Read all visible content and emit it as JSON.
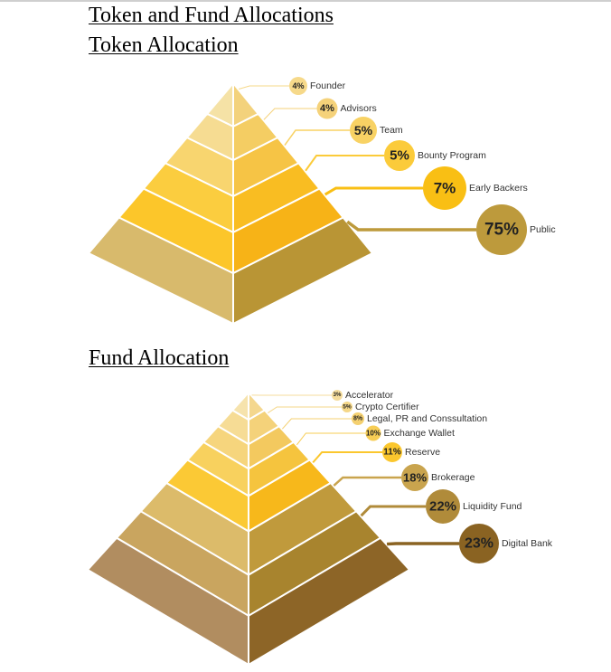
{
  "page": {
    "title": "Token and Fund Allocations"
  },
  "chart_data": [
    {
      "type": "pyramid",
      "title": "Token Allocation",
      "categories": [
        "Founder",
        "Advisors",
        "Team",
        "Bounty Program",
        "Early Backers",
        "Public"
      ],
      "values": [
        4,
        4,
        5,
        5,
        7,
        75
      ],
      "value_labels": [
        "4%",
        "4%",
        "5%",
        "5%",
        "7%",
        "75%"
      ],
      "unit": "%",
      "order": "top-to-bottom",
      "colors": [
        {
          "left": "#f5e2a6",
          "right": "#f3d27c",
          "bubble": "#f6d98a"
        },
        {
          "left": "#f6dc92",
          "right": "#f4cd63",
          "bubble": "#f5d27a"
        },
        {
          "left": "#f8d56f",
          "right": "#f6c445",
          "bubble": "#f8d264"
        },
        {
          "left": "#fbcd3f",
          "right": "#f9bd22",
          "bubble": "#fbcb3a"
        },
        {
          "left": "#fcc62a",
          "right": "#f7b317",
          "bubble": "#f9bf14"
        },
        {
          "left": "#d8ba6c",
          "right": "#b99535",
          "bubble": "#bd9a3c"
        }
      ]
    },
    {
      "type": "pyramid",
      "title": "Fund Allocation",
      "categories": [
        "Accelerator",
        "Crypto Certifier",
        "Legal, PR and Conssultation",
        "Exchange Wallet",
        "Reserve",
        "Brokerage",
        "Liquidity Fund",
        "Digital Bank"
      ],
      "values": [
        3,
        5,
        8,
        10,
        11,
        18,
        22,
        23
      ],
      "value_labels": [
        "3%",
        "5%",
        "8%",
        "10%",
        "11%",
        "18%",
        "22%",
        "23%"
      ],
      "unit": "%",
      "order": "top-to-bottom",
      "colors": [
        {
          "left": "#f6e3ad",
          "right": "#f4d78e",
          "bubble": "#f5dc9c"
        },
        {
          "left": "#f6dc95",
          "right": "#f4d27a",
          "bubble": "#f5d788"
        },
        {
          "left": "#f6d57d",
          "right": "#f3c95f",
          "bubble": "#f4d070"
        },
        {
          "left": "#f8d15e",
          "right": "#f5c43e",
          "bubble": "#f7cd55"
        },
        {
          "left": "#fbc935",
          "right": "#f7b81b",
          "bubble": "#fbc72e"
        },
        {
          "left": "#dcbb6a",
          "right": "#c09a3c",
          "bubble": "#c9a44e"
        },
        {
          "left": "#c9a55f",
          "right": "#a8842e",
          "bubble": "#b08b3a"
        },
        {
          "left": "#b18d60",
          "right": "#8d6527",
          "bubble": "#8a6322"
        }
      ]
    }
  ]
}
